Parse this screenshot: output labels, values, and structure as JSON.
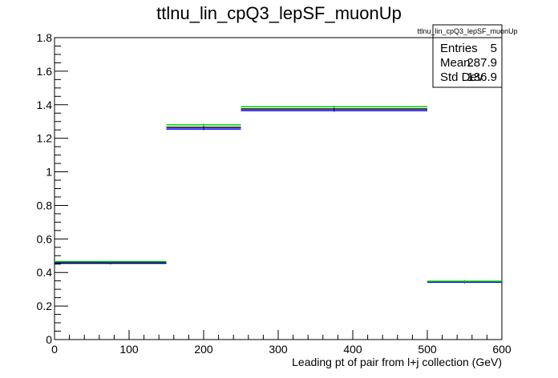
{
  "chart_data": {
    "type": "histogram",
    "title": "ttlnu_lin_cpQ3_lepSF_muonUp",
    "xlabel": "Leading pt of pair from l+j collection (GeV)",
    "ylabel": "",
    "xlim": [
      0,
      600
    ],
    "ylim": [
      0,
      1.8
    ],
    "x_ticks": [
      "0",
      "100",
      "200",
      "300",
      "400",
      "500",
      "600"
    ],
    "y_ticks": [
      "0",
      "0.2",
      "0.4",
      "0.6",
      "0.8",
      "1",
      "1.2",
      "1.4",
      "1.6",
      "1.8"
    ],
    "bins": [
      [
        0,
        150
      ],
      [
        150,
        250
      ],
      [
        250,
        500
      ],
      [
        500,
        600
      ]
    ],
    "series": [
      {
        "color": "#000000",
        "values": [
          0.455,
          1.265,
          1.375,
          0.345
        ]
      },
      {
        "color": "#0000ff",
        "values": [
          0.46,
          1.255,
          1.365,
          0.342
        ]
      },
      {
        "color": "#00cc00",
        "values": [
          0.465,
          1.28,
          1.388,
          0.348
        ]
      }
    ],
    "stats": {
      "name": "ttlnu_lin_cpQ3_lepSF_muonUp",
      "rows": [
        {
          "label": "Entries",
          "value": "5"
        },
        {
          "label": "Mean",
          "value": "287.9"
        },
        {
          "label": "Std Dev",
          "value": "136.9"
        }
      ]
    },
    "grid": false,
    "legend": "top-right"
  }
}
